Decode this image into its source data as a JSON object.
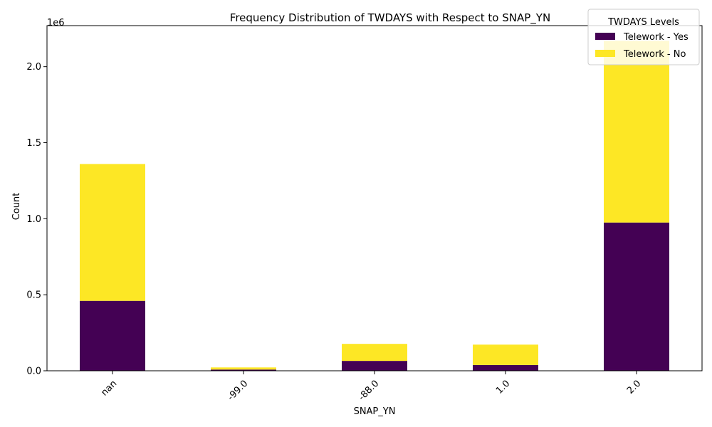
{
  "chart_data": {
    "type": "bar",
    "stacked": true,
    "title": "Frequency Distribution of TWDAYS with Respect to SNAP_YN",
    "xlabel": "SNAP_YN",
    "ylabel": "Count",
    "y_offset_label": "1e6",
    "categories": [
      "nan",
      "-99.0",
      "-88.0",
      "1.0",
      "2.0"
    ],
    "series": [
      {
        "name": "Telework - Yes",
        "color": "#440154",
        "values": [
          460000,
          8000,
          65000,
          38000,
          975000
        ]
      },
      {
        "name": "Telework - No",
        "color": "#fde725",
        "values": [
          900000,
          14000,
          112000,
          134000,
          1195000
        ]
      }
    ],
    "ylim": [
      0,
      2270000
    ],
    "y_ticks": [
      0,
      500000,
      1000000,
      1500000,
      2000000
    ],
    "y_tick_labels": [
      "0.0",
      "0.5",
      "1.0",
      "1.5",
      "2.0"
    ],
    "legend": {
      "title": "TWDAYS Levels",
      "position": "upper-right"
    },
    "grid": false
  }
}
